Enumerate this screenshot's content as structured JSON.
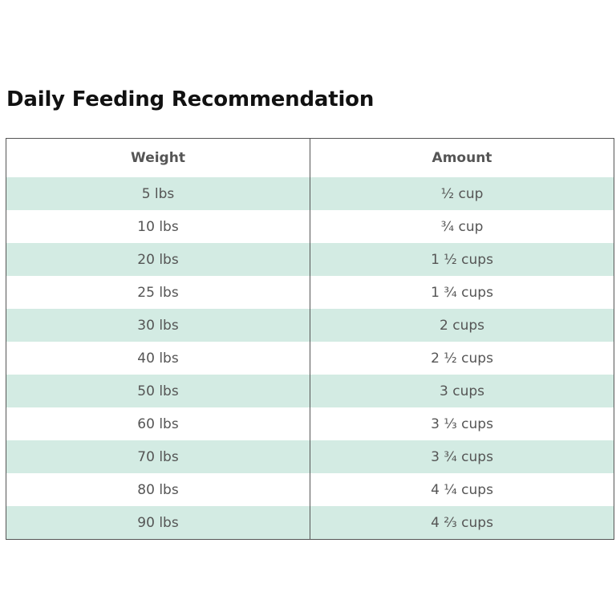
{
  "title": "Daily Feeding Recommendation",
  "table": {
    "headers": {
      "weight": "Weight",
      "amount": "Amount"
    },
    "rows": [
      {
        "weight": "5 lbs",
        "amount": "½ cup"
      },
      {
        "weight": "10 lbs",
        "amount": "¾ cup"
      },
      {
        "weight": "20 lbs",
        "amount": "1 ½ cups"
      },
      {
        "weight": "25 lbs",
        "amount": "1 ¾ cups"
      },
      {
        "weight": "30 lbs",
        "amount": "2 cups"
      },
      {
        "weight": "40 lbs",
        "amount": "2 ½ cups"
      },
      {
        "weight": "50 lbs",
        "amount": "3 cups"
      },
      {
        "weight": "60 lbs",
        "amount": "3 ⅓ cups"
      },
      {
        "weight": "70 lbs",
        "amount": "3 ¾ cups"
      },
      {
        "weight": "80 lbs",
        "amount": "4 ¼ cups"
      },
      {
        "weight": "90 lbs",
        "amount": "4 ⅔ cups"
      }
    ]
  },
  "colors": {
    "stripe": "#d3ebe3",
    "text": "#555555",
    "title": "#111111",
    "border": "#555555"
  }
}
